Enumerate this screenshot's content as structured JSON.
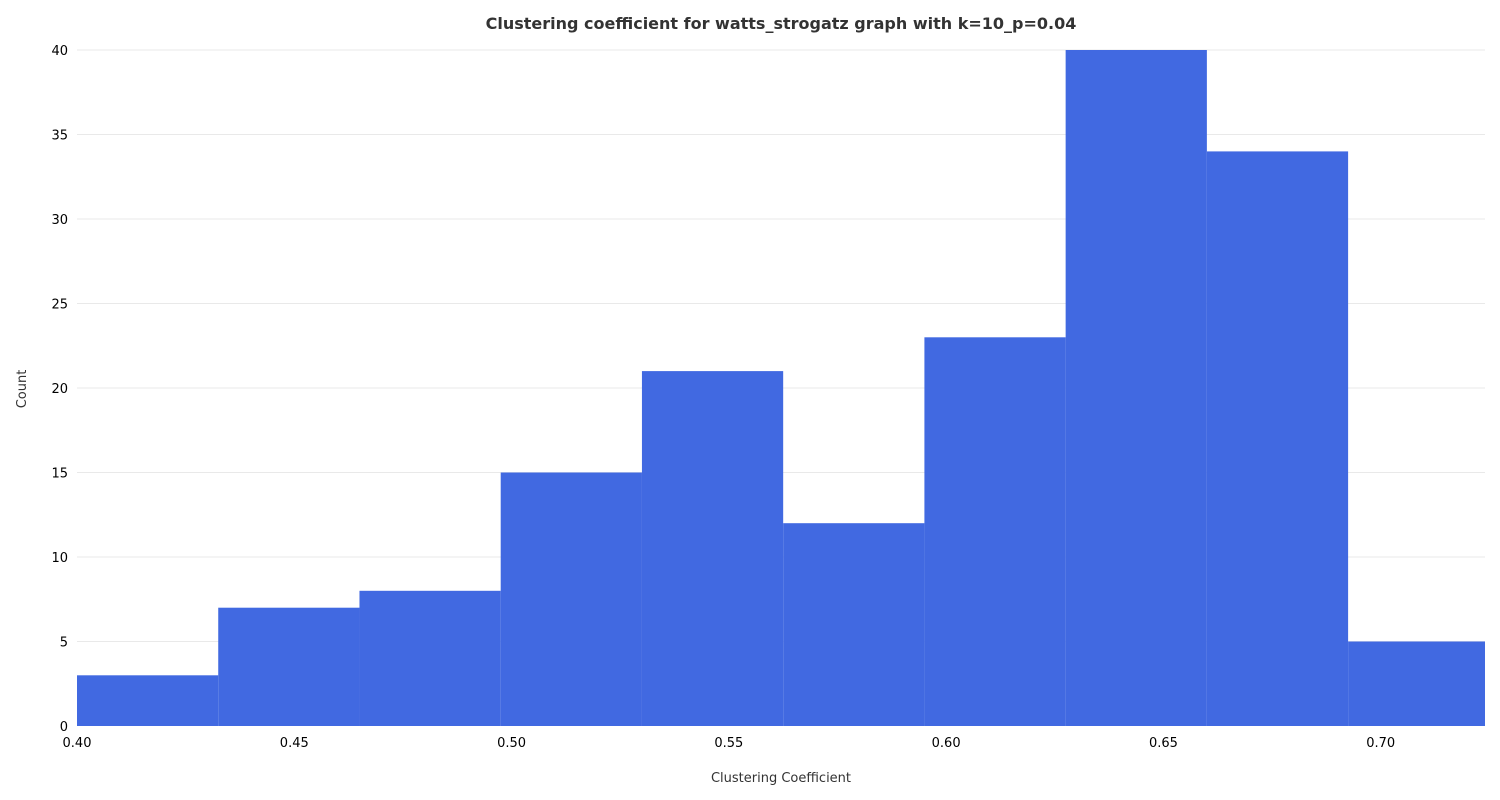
{
  "chart_data": {
    "type": "bar",
    "subtype": "histogram",
    "title": "Clustering coefficient for watts_strogatz graph with k=10_p=0.04",
    "xlabel": "Clustering Coefficient",
    "ylabel": "Count",
    "bins": [
      {
        "x0": 0.4,
        "x1": 0.4325,
        "count": 3
      },
      {
        "x0": 0.4325,
        "x1": 0.465,
        "count": 7
      },
      {
        "x0": 0.465,
        "x1": 0.4975,
        "count": 8
      },
      {
        "x0": 0.4975,
        "x1": 0.53,
        "count": 15
      },
      {
        "x0": 0.53,
        "x1": 0.5625,
        "count": 21
      },
      {
        "x0": 0.5625,
        "x1": 0.595,
        "count": 12
      },
      {
        "x0": 0.595,
        "x1": 0.6275,
        "count": 23
      },
      {
        "x0": 0.6275,
        "x1": 0.66,
        "count": 40
      },
      {
        "x0": 0.66,
        "x1": 0.6925,
        "count": 34
      },
      {
        "x0": 0.6925,
        "x1": 0.725,
        "count": 5
      }
    ],
    "xlim": [
      0.4,
      0.724
    ],
    "ylim": [
      0,
      40
    ],
    "xticks": [
      "0.40",
      "0.45",
      "0.50",
      "0.55",
      "0.60",
      "0.65",
      "0.70"
    ],
    "yticks": [
      "0",
      "5",
      "10",
      "15",
      "20",
      "25",
      "30",
      "35",
      "40"
    ],
    "grid": "horizontal",
    "bar_color": "#4169e1"
  }
}
